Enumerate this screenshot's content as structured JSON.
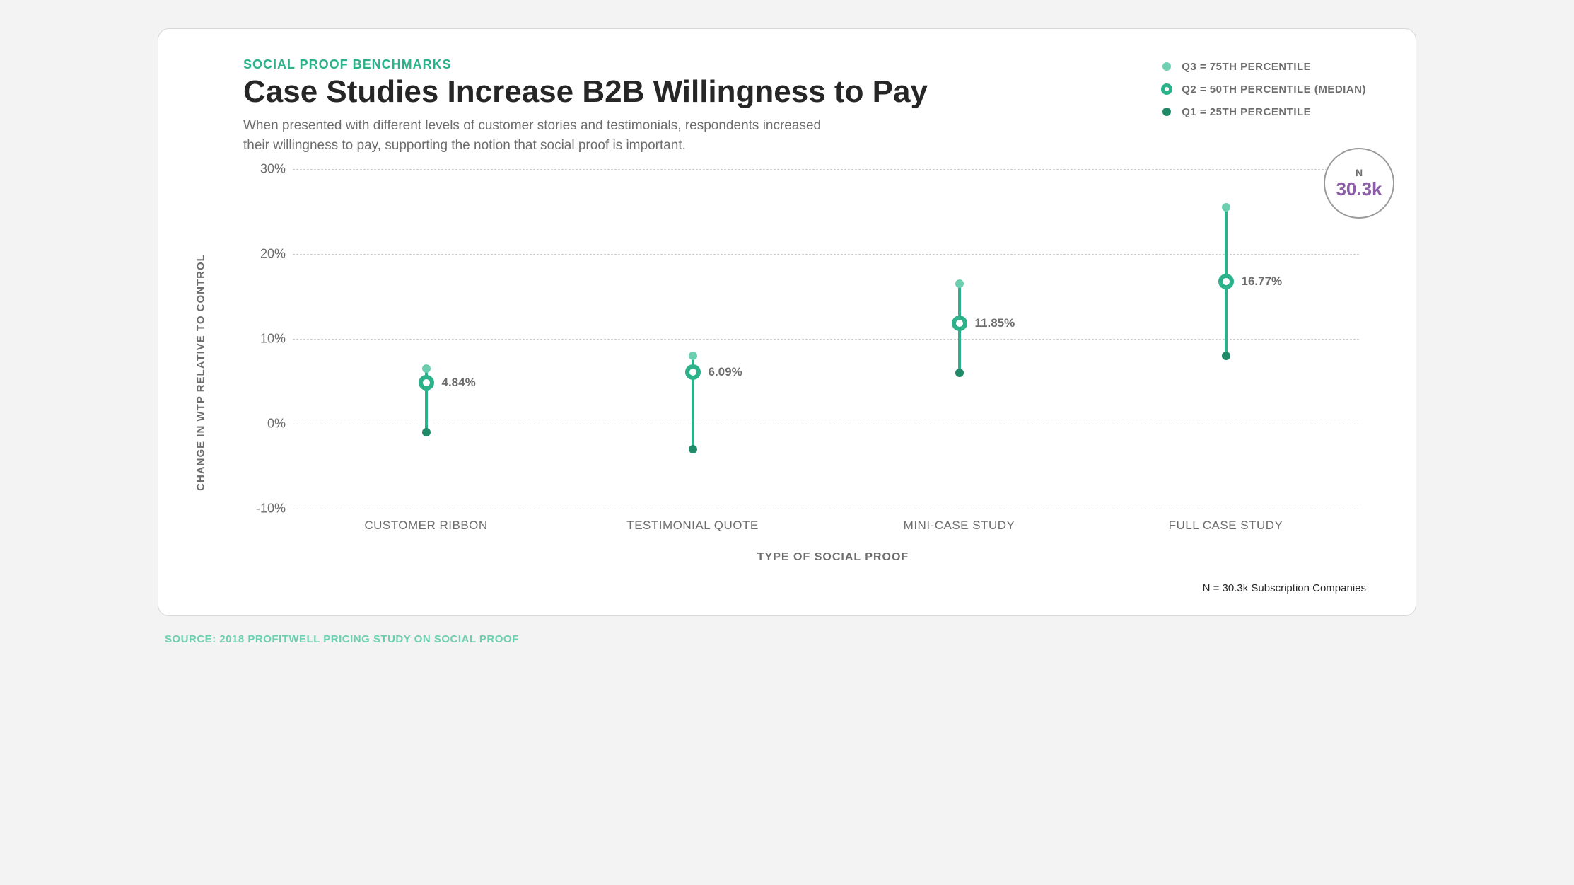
{
  "colors": {
    "accent": "#2bb28a",
    "accent_light": "#6ccfb0",
    "accent_dark": "#1f8a68",
    "text_dark": "#262626",
    "text_muted": "#6d6d6d",
    "grid": "#cfcfcf",
    "purple": "#8a5da6",
    "badge_border": "#9a9a9a",
    "card_bg": "#ffffff",
    "page_bg": "#f3f3f3"
  },
  "kicker": "SOCIAL PROOF BENCHMARKS",
  "title": "Case Studies Increase B2B Willingness to Pay",
  "subtitle": "When presented with different levels of customer stories and testimonials, respondents increased their willingness to pay, supporting the notion that social proof is important.",
  "legend": [
    {
      "label": "Q3 = 75TH PERCENTILE",
      "kind": "q3"
    },
    {
      "label": "Q2 = 50TH PERCENTILE (MEDIAN)",
      "kind": "q2"
    },
    {
      "label": "Q1 = 25TH PERCENTILE",
      "kind": "q1"
    }
  ],
  "chart": {
    "type": "percentile-dot",
    "yaxis": {
      "label": "CHANGE IN WTP RELATIVE TO CONTROL",
      "min": -10,
      "max": 30,
      "ticks": [
        -10,
        0,
        10,
        20,
        30
      ],
      "tick_labels": [
        "-10%",
        "0%",
        "10%",
        "20%",
        "30%"
      ]
    },
    "xaxis": {
      "label": "TYPE OF SOCIAL PROOF"
    },
    "categories": [
      {
        "name": "CUSTOMER RIBBON",
        "q1": -1.0,
        "q2": 4.84,
        "q3": 6.5,
        "median_label": "4.84%"
      },
      {
        "name": "TESTIMONIAL QUOTE",
        "q1": -3.0,
        "q2": 6.09,
        "q3": 8.0,
        "median_label": "6.09%"
      },
      {
        "name": "MINI-CASE STUDY",
        "q1": 6.0,
        "q2": 11.85,
        "q3": 16.5,
        "median_label": "11.85%"
      },
      {
        "name": "FULL CASE STUDY",
        "q1": 8.0,
        "q2": 16.77,
        "q3": 25.5,
        "median_label": "16.77%"
      }
    ],
    "n_badge": {
      "letter": "N",
      "value": "30.3k"
    },
    "footnote": "N = 30.3k Subscription Companies"
  },
  "source": "SOURCE: 2018 PROFITWELL PRICING STUDY ON SOCIAL PROOF",
  "typography": {
    "kicker_fontsize": 18,
    "title_fontsize": 44,
    "subtitle_fontsize": 19,
    "axis_label_fontsize": 16,
    "tick_fontsize": 18,
    "value_label_fontsize": 17
  }
}
